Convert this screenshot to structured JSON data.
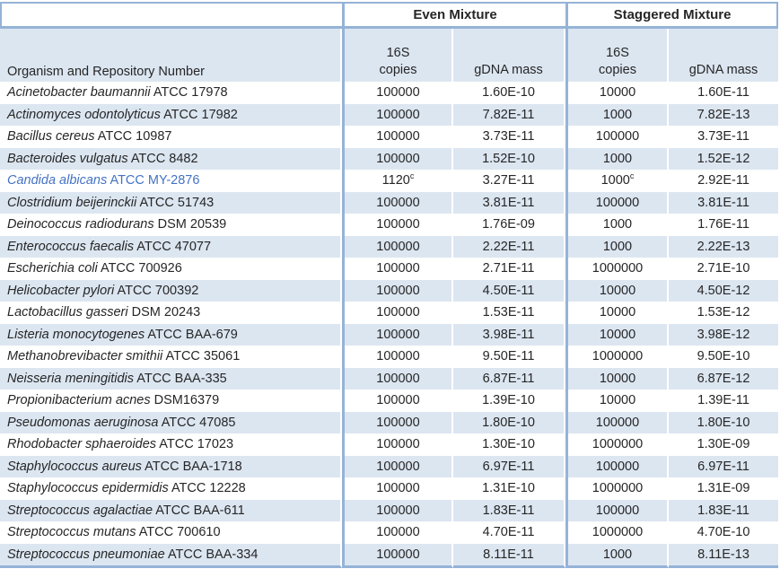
{
  "table": {
    "groups": {
      "even": "Even Mixture",
      "staggered": "Staggered Mixture"
    },
    "columns": {
      "organism": "Organism and Repository Number",
      "copies_line1": "16S",
      "copies_line2": "copies",
      "gdna": "gDNA mass"
    },
    "footnote_marker": "c",
    "rows": [
      {
        "name": "Acinetobacter baumannii",
        "repo": "ATCC 17978",
        "even_16s": "100000",
        "even_sup": "",
        "even_gdna": "1.60E-10",
        "stag_16s": "10000",
        "stag_sup": "",
        "stag_gdna": "1.60E-11",
        "link": false
      },
      {
        "name": "Actinomyces odontolyticus",
        "repo": "ATCC 17982",
        "even_16s": "100000",
        "even_sup": "",
        "even_gdna": "7.82E-11",
        "stag_16s": "1000",
        "stag_sup": "",
        "stag_gdna": "7.82E-13",
        "link": false
      },
      {
        "name": "Bacillus cereus",
        "repo": "ATCC 10987",
        "even_16s": "100000",
        "even_sup": "",
        "even_gdna": "3.73E-11",
        "stag_16s": "100000",
        "stag_sup": "",
        "stag_gdna": "3.73E-11",
        "link": false
      },
      {
        "name": "Bacteroides vulgatus",
        "repo": "ATCC 8482",
        "even_16s": "100000",
        "even_sup": "",
        "even_gdna": "1.52E-10",
        "stag_16s": "1000",
        "stag_sup": "",
        "stag_gdna": "1.52E-12",
        "link": false
      },
      {
        "name": "Candida albicans",
        "repo": "ATCC MY-2876",
        "even_16s": "1120",
        "even_sup": "c",
        "even_gdna": "3.27E-11",
        "stag_16s": "1000",
        "stag_sup": "c",
        "stag_gdna": "2.92E-11",
        "link": true
      },
      {
        "name": "Clostridium beijerinckii",
        "repo": "ATCC 51743",
        "even_16s": "100000",
        "even_sup": "",
        "even_gdna": "3.81E-11",
        "stag_16s": "100000",
        "stag_sup": "",
        "stag_gdna": "3.81E-11",
        "link": false
      },
      {
        "name": "Deinococcus radiodurans",
        "repo": "DSM 20539",
        "even_16s": "100000",
        "even_sup": "",
        "even_gdna": "1.76E-09",
        "stag_16s": "1000",
        "stag_sup": "",
        "stag_gdna": "1.76E-11",
        "link": false
      },
      {
        "name": "Enterococcus faecalis",
        "repo": "ATCC 47077",
        "even_16s": "100000",
        "even_sup": "",
        "even_gdna": "2.22E-11",
        "stag_16s": "1000",
        "stag_sup": "",
        "stag_gdna": "2.22E-13",
        "link": false
      },
      {
        "name": "Escherichia coli",
        "repo": "ATCC 700926",
        "even_16s": "100000",
        "even_sup": "",
        "even_gdna": "2.71E-11",
        "stag_16s": "1000000",
        "stag_sup": "",
        "stag_gdna": "2.71E-10",
        "link": false
      },
      {
        "name": "Helicobacter pylori",
        "repo": "ATCC 700392",
        "even_16s": "100000",
        "even_sup": "",
        "even_gdna": "4.50E-11",
        "stag_16s": "10000",
        "stag_sup": "",
        "stag_gdna": "4.50E-12",
        "link": false
      },
      {
        "name": "Lactobacillus gasseri",
        "repo": "DSM 20243",
        "even_16s": "100000",
        "even_sup": "",
        "even_gdna": "1.53E-11",
        "stag_16s": "10000",
        "stag_sup": "",
        "stag_gdna": "1.53E-12",
        "link": false
      },
      {
        "name": "Listeria monocytogenes",
        "repo": "ATCC BAA-679",
        "even_16s": "100000",
        "even_sup": "",
        "even_gdna": "3.98E-11",
        "stag_16s": "10000",
        "stag_sup": "",
        "stag_gdna": "3.98E-12",
        "link": false
      },
      {
        "name": "Methanobrevibacter smithii",
        "repo": "ATCC 35061",
        "even_16s": "100000",
        "even_sup": "",
        "even_gdna": "9.50E-11",
        "stag_16s": "1000000",
        "stag_sup": "",
        "stag_gdna": "9.50E-10",
        "link": false
      },
      {
        "name": "Neisseria meningitidis",
        "repo": "ATCC BAA-335",
        "even_16s": "100000",
        "even_sup": "",
        "even_gdna": "6.87E-11",
        "stag_16s": "10000",
        "stag_sup": "",
        "stag_gdna": "6.87E-12",
        "link": false
      },
      {
        "name": "Propionibacterium acnes",
        "repo": "DSM16379",
        "even_16s": "100000",
        "even_sup": "",
        "even_gdna": "1.39E-10",
        "stag_16s": "10000",
        "stag_sup": "",
        "stag_gdna": "1.39E-11",
        "link": false
      },
      {
        "name": "Pseudomonas aeruginosa",
        "repo": "ATCC 47085",
        "even_16s": "100000",
        "even_sup": "",
        "even_gdna": "1.80E-10",
        "stag_16s": "100000",
        "stag_sup": "",
        "stag_gdna": "1.80E-10",
        "link": false
      },
      {
        "name": "Rhodobacter sphaeroides",
        "repo": "ATCC 17023",
        "even_16s": "100000",
        "even_sup": "",
        "even_gdna": "1.30E-10",
        "stag_16s": "1000000",
        "stag_sup": "",
        "stag_gdna": "1.30E-09",
        "link": false
      },
      {
        "name": "Staphylococcus aureus",
        "repo": "ATCC BAA-1718",
        "even_16s": "100000",
        "even_sup": "",
        "even_gdna": "6.97E-11",
        "stag_16s": "100000",
        "stag_sup": "",
        "stag_gdna": "6.97E-11",
        "link": false
      },
      {
        "name": "Staphylococcus epidermidis",
        "repo": "ATCC 12228",
        "even_16s": "100000",
        "even_sup": "",
        "even_gdna": "1.31E-10",
        "stag_16s": "1000000",
        "stag_sup": "",
        "stag_gdna": "1.31E-09",
        "link": false
      },
      {
        "name": "Streptococcus agalactiae",
        "repo": "ATCC BAA-611",
        "even_16s": "100000",
        "even_sup": "",
        "even_gdna": "1.83E-11",
        "stag_16s": "100000",
        "stag_sup": "",
        "stag_gdna": "1.83E-11",
        "link": false
      },
      {
        "name": "Streptococcus mutans",
        "repo": "ATCC 700610",
        "even_16s": "100000",
        "even_sup": "",
        "even_gdna": "4.70E-11",
        "stag_16s": "1000000",
        "stag_sup": "",
        "stag_gdna": "4.70E-10",
        "link": false
      },
      {
        "name": "Streptococcus pneumoniae",
        "repo": "ATCC BAA-334",
        "even_16s": "100000",
        "even_sup": "",
        "even_gdna": "8.11E-11",
        "stag_16s": "1000",
        "stag_sup": "",
        "stag_gdna": "8.11E-13",
        "link": false
      }
    ]
  },
  "colors": {
    "border_blue": "#95B3D7",
    "row_shade": "#DCE6F1",
    "link_blue": "#4472C4",
    "text": "#262626"
  }
}
